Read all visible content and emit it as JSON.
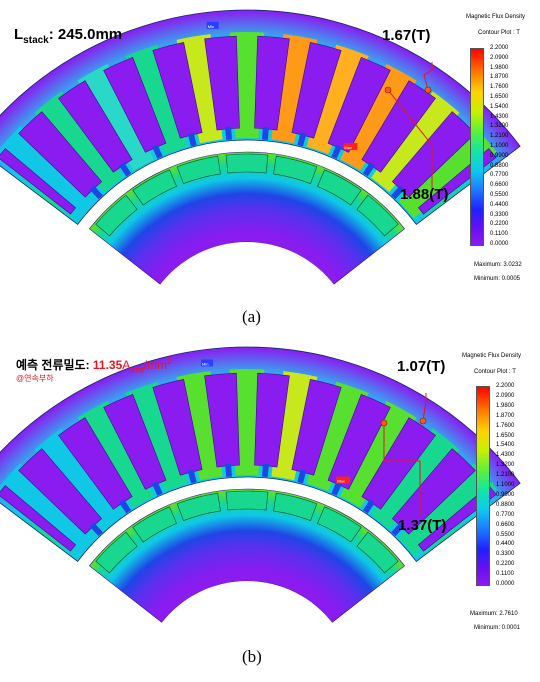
{
  "panel_a": {
    "caption": "(a)",
    "stack_label_main": "L",
    "stack_label_sub": "stack",
    "stack_label_value": ": 245.0mm",
    "value_top": "1.67(T)",
    "value_bottom": "1.88(T)",
    "legend": {
      "title": "Magnetic Flux Density",
      "subtitle": "Contour Plot : T",
      "ticks": [
        "2.2000",
        "2.0900",
        "1.9800",
        "1.8700",
        "1.7600",
        "1.6500",
        "1.5400",
        "1.4300",
        "1.3200",
        "1.2100",
        "1.1000",
        "0.9900",
        "0.8800",
        "0.7700",
        "0.6600",
        "0.5500",
        "0.4400",
        "0.3300",
        "0.2200",
        "0.1100",
        "0.0000"
      ],
      "maximum": "Maximum: 3.0232",
      "minimum": "Minimum: 0.0005"
    },
    "markers": {
      "max_label": "Max",
      "min_label": "Min"
    }
  },
  "panel_b": {
    "caption": "(b)",
    "density_prefix": "예측 전류밀도: ",
    "density_value": "11.35",
    "density_unit_main": "A",
    "density_unit_sub": "rms",
    "density_unit_rest": "/mm",
    "density_unit_sup": "2",
    "sublabel": "@연속부하",
    "value_top": "1.07(T)",
    "value_bottom": "1.37(T)",
    "legend": {
      "title": "Magnetic Flux Density",
      "subtitle": "Contour Plot : T",
      "ticks": [
        "2.2000",
        "2.0900",
        "1.9800",
        "1.8700",
        "1.7600",
        "1.6500",
        "1.5400",
        "1.4300",
        "1.3200",
        "1.2100",
        "1.1000",
        "0.9900",
        "0.8800",
        "0.7700",
        "0.6600",
        "0.5500",
        "0.4400",
        "0.3300",
        "0.2200",
        "0.1100",
        "0.0000"
      ],
      "maximum": "Maximum: 2.7610",
      "minimum": "Minimum: 0.0001"
    },
    "markers": {
      "max_label": "Max",
      "min_label": "Min"
    }
  },
  "colors": {
    "violet": "#8a1cf0",
    "blue": "#1e46e6",
    "cyan": "#10c8e6",
    "teal": "#18d890",
    "green": "#58e030",
    "yellowgreen": "#c8e81e",
    "orange": "#ff9a18",
    "red": "#e8141e"
  }
}
